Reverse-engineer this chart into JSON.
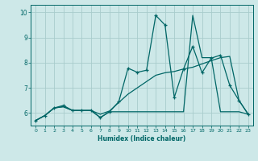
{
  "xlabel": "Humidex (Indice chaleur)",
  "bg_color": "#cde8e8",
  "grid_color": "#a8cccc",
  "line_color": "#006666",
  "xlim": [
    -0.5,
    23.5
  ],
  "ylim": [
    5.5,
    10.3
  ],
  "xticks": [
    0,
    1,
    2,
    3,
    4,
    5,
    6,
    7,
    8,
    9,
    10,
    11,
    12,
    13,
    14,
    15,
    16,
    17,
    18,
    19,
    20,
    21,
    22,
    23
  ],
  "yticks": [
    6,
    7,
    8,
    9,
    10
  ],
  "line1_x": [
    0,
    1,
    2,
    3,
    4,
    5,
    6,
    7,
    8,
    9,
    10,
    11,
    12,
    13,
    14,
    15,
    16,
    17,
    18,
    19,
    20,
    21,
    22,
    23
  ],
  "line1_y": [
    5.7,
    5.9,
    6.2,
    6.3,
    6.1,
    6.1,
    6.1,
    5.82,
    6.05,
    6.45,
    7.78,
    7.62,
    7.7,
    9.88,
    9.5,
    6.62,
    7.75,
    8.65,
    7.6,
    8.18,
    8.3,
    7.1,
    6.5,
    5.95
  ],
  "line2_x": [
    0,
    1,
    2,
    3,
    4,
    5,
    6,
    7,
    8,
    9,
    10,
    11,
    12,
    13,
    14,
    15,
    16,
    17,
    18,
    19,
    20,
    21,
    22,
    23
  ],
  "line2_y": [
    5.7,
    5.9,
    6.2,
    6.25,
    6.1,
    6.1,
    6.1,
    5.82,
    6.05,
    6.05,
    6.05,
    6.05,
    6.05,
    6.05,
    6.05,
    6.05,
    6.05,
    9.88,
    8.2,
    8.2,
    6.05,
    6.05,
    6.05,
    5.95
  ],
  "line3_x": [
    0,
    1,
    2,
    3,
    4,
    5,
    6,
    7,
    8,
    9,
    10,
    11,
    12,
    13,
    14,
    15,
    16,
    17,
    18,
    19,
    20,
    21,
    22,
    23
  ],
  "line3_y": [
    5.7,
    5.9,
    6.2,
    6.25,
    6.1,
    6.1,
    6.1,
    5.95,
    6.08,
    6.42,
    6.75,
    7.0,
    7.25,
    7.5,
    7.6,
    7.65,
    7.75,
    7.82,
    7.95,
    8.08,
    8.2,
    8.25,
    6.5,
    5.95
  ]
}
